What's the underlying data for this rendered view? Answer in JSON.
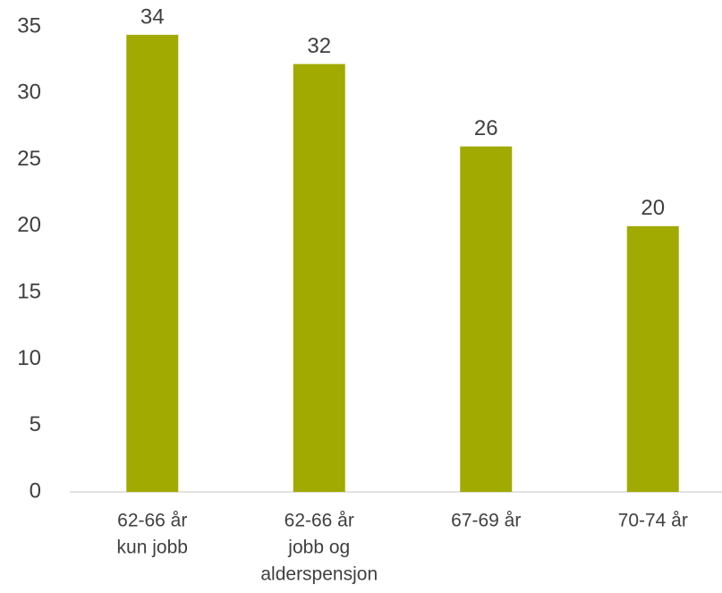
{
  "chart_data": {
    "type": "bar",
    "categories": [
      [
        "62-66 år",
        "kun jobb"
      ],
      [
        "62-66 år",
        "jobb og",
        "alderspensjon"
      ],
      [
        "67-69 år"
      ],
      [
        "70-74 år"
      ]
    ],
    "values": [
      34.4,
      32.2,
      26,
      20
    ],
    "value_labels": [
      "34",
      "32",
      "26",
      "20"
    ],
    "color": "#a0aa00",
    "ylim": [
      0,
      35
    ],
    "yticks": [
      0,
      5,
      10,
      15,
      20,
      25,
      30,
      35
    ],
    "grid": false
  }
}
